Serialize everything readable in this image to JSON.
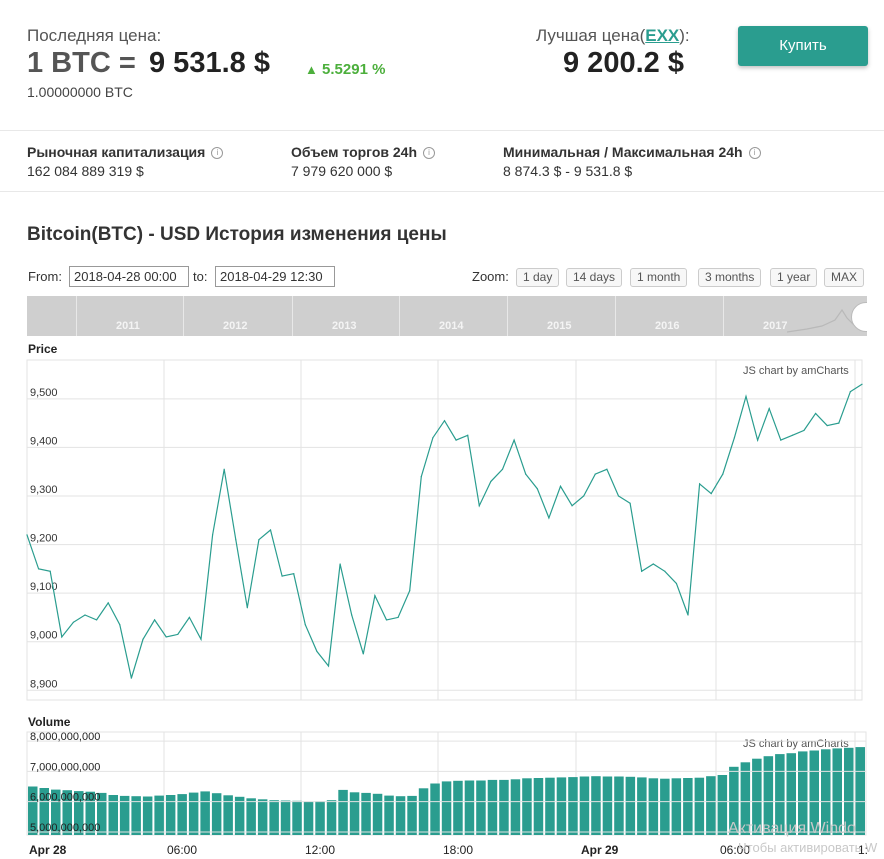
{
  "header": {
    "last_price_label": "Последняя цена:",
    "pair_prefix": "1 BTC =",
    "price": "9 531.8 $",
    "change": "5.5291 %",
    "btc_amount": "1.00000000 BTC",
    "best_price_label": "Лучшая цена(",
    "best_exchange": "EXX",
    "best_price_suffix": "):",
    "best_price": "9 200.2 $",
    "buy_button": "Купить"
  },
  "stats": [
    {
      "label": "Рыночная капитализация",
      "value": "162 084 889 319 $"
    },
    {
      "label": "Объем торгов 24h",
      "value": "7 979 620 000 $"
    },
    {
      "label": "Минимальная / Максимальная 24h",
      "value": "8 874.3 $ - 9 531.8 $"
    }
  ],
  "history": {
    "title": "Bitcoin(BTC) - USD История изменения цены",
    "from_label": "From:",
    "from_value": "2018-04-28 00:00",
    "to_label": "to:",
    "to_value": "2018-04-29 12:30",
    "zoom_label": "Zoom:",
    "zoom_options": [
      "1 day",
      "14 days",
      "1 month",
      "3 months",
      "1 year",
      "MAX"
    ],
    "navigator_years": [
      "2011",
      "2012",
      "2013",
      "2014",
      "2015",
      "2016",
      "2017"
    ]
  },
  "chart_data": [
    {
      "type": "line",
      "title": "Price",
      "credit": "JS chart by amCharts",
      "ylim": [
        8880,
        9580
      ],
      "y_ticks": [
        "9,500",
        "9,400",
        "9,300",
        "9,200",
        "9,100",
        "9,000",
        "8,900"
      ],
      "x_ticks": [
        "Apr 28",
        "06:00",
        "12:00",
        "18:00",
        "Apr 29",
        "06:00",
        "1:"
      ],
      "series": [
        {
          "values": [
            9220,
            9150,
            9145,
            9010,
            9040,
            9055,
            9045,
            9080,
            9035,
            8925,
            9005,
            9045,
            9010,
            9015,
            9050,
            9005,
            9220,
            9355,
            9210,
            9070,
            9210,
            9230,
            9135,
            9140,
            9035,
            8980,
            8950,
            9160,
            9055,
            8975,
            9095,
            9045,
            9050,
            9105,
            9340,
            9420,
            9455,
            9415,
            9425,
            9280,
            9330,
            9355,
            9415,
            9345,
            9315,
            9255,
            9320,
            9280,
            9300,
            9345,
            9355,
            9300,
            9285,
            9145,
            9160,
            9145,
            9120,
            9055,
            9325,
            9305,
            9345,
            9420,
            9505,
            9415,
            9480,
            9415,
            9425,
            9435,
            9470,
            9445,
            9450,
            9515,
            9530
          ]
        }
      ]
    },
    {
      "type": "bar",
      "title": "Volume",
      "credit": "JS chart by amCharts",
      "ylim": [
        4900000000,
        8300000000
      ],
      "y_ticks": [
        "8,000,000,000",
        "7,000,000,000",
        "6,000,000,000",
        "5,000,000,000"
      ],
      "series": [
        {
          "values": [
            6500000000,
            6450000000,
            6400000000,
            6380000000,
            6350000000,
            6330000000,
            6290000000,
            6220000000,
            6190000000,
            6180000000,
            6170000000,
            6200000000,
            6220000000,
            6250000000,
            6300000000,
            6340000000,
            6280000000,
            6210000000,
            6160000000,
            6110000000,
            6080000000,
            6050000000,
            6040000000,
            6030000000,
            6010000000,
            6020000000,
            6050000000,
            6390000000,
            6310000000,
            6290000000,
            6260000000,
            6200000000,
            6180000000,
            6190000000,
            6440000000,
            6600000000,
            6670000000,
            6690000000,
            6700000000,
            6700000000,
            6720000000,
            6720000000,
            6740000000,
            6770000000,
            6780000000,
            6790000000,
            6800000000,
            6810000000,
            6830000000,
            6840000000,
            6830000000,
            6830000000,
            6820000000,
            6800000000,
            6770000000,
            6760000000,
            6770000000,
            6780000000,
            6790000000,
            6840000000,
            6880000000,
            7150000000,
            7300000000,
            7420000000,
            7500000000,
            7570000000,
            7600000000,
            7660000000,
            7690000000,
            7730000000,
            7760000000,
            7780000000,
            7800000000
          ]
        }
      ]
    }
  ],
  "overlay": {
    "watermark_line1": "Активация Windo",
    "watermark_line2": "Чтобы активировать W"
  }
}
